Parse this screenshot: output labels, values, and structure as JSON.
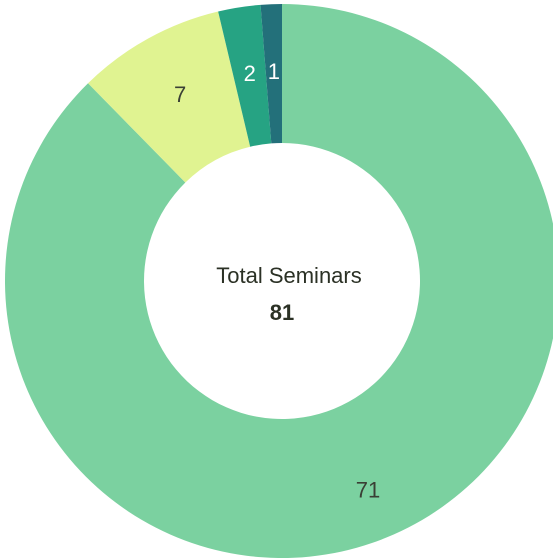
{
  "chart_data": {
    "type": "donut",
    "center_title": "Total Seminars",
    "total": 81,
    "values": [
      71,
      7,
      2,
      1
    ],
    "colors": [
      "#7bd1a0",
      "#e0f391",
      "#26a383",
      "#23707a"
    ]
  }
}
